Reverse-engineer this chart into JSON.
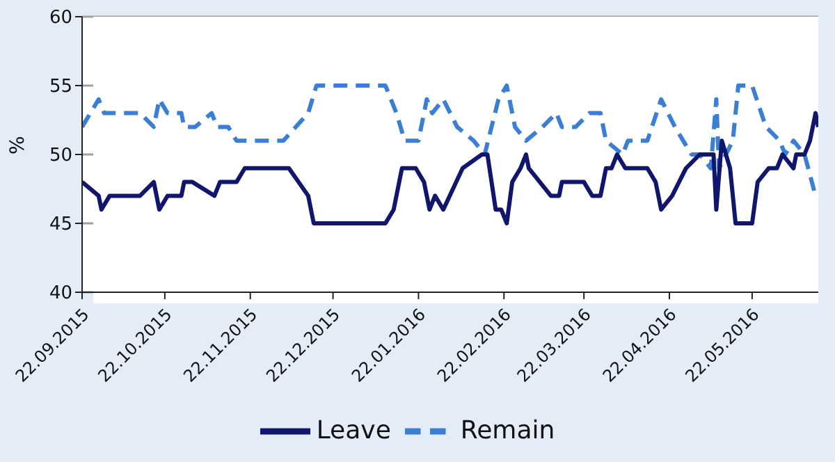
{
  "chart_data": {
    "type": "line",
    "ylabel": "%",
    "xlim": [
      "2015-09-22",
      "2016-06-15"
    ],
    "ylim": [
      40,
      60
    ],
    "yticks": [
      40,
      45,
      50,
      55,
      60
    ],
    "xticks": [
      {
        "value": "2015-09-22",
        "label": "22.09.2015"
      },
      {
        "value": "2015-10-22",
        "label": "22.10.2015"
      },
      {
        "value": "2015-11-22",
        "label": "22.11.2015"
      },
      {
        "value": "2015-12-22",
        "label": "22.12.2015"
      },
      {
        "value": "2016-01-22",
        "label": "22.01.2016"
      },
      {
        "value": "2016-02-22",
        "label": "22.02.2016"
      },
      {
        "value": "2016-03-22",
        "label": "22.03.2016"
      },
      {
        "value": "2016-04-22",
        "label": "22.04.2016"
      },
      {
        "value": "2016-05-22",
        "label": "22.05.2016"
      }
    ],
    "grid": "y",
    "legend": "bottom",
    "marker": "none",
    "series": [
      {
        "name": "Remain",
        "color": "#3a7fd5",
        "line_style": "dashed",
        "x": [
          "2015-09-22",
          "2015-09-28",
          "2015-09-30",
          "2015-10-13",
          "2015-10-18",
          "2015-10-20",
          "2015-10-23",
          "2015-10-28",
          "2015-10-29",
          "2015-11-02",
          "2015-11-08",
          "2015-11-10",
          "2015-11-14",
          "2015-11-17",
          "2015-12-04",
          "2015-12-13",
          "2015-12-16",
          "2016-01-10",
          "2016-01-14",
          "2016-01-17",
          "2016-01-22",
          "2016-01-25",
          "2016-01-27",
          "2016-01-31",
          "2016-02-05",
          "2016-02-11",
          "2016-02-15",
          "2016-02-20",
          "2016-02-23",
          "2016-02-24",
          "2016-02-26",
          "2016-03-01",
          "2016-03-07",
          "2016-03-12",
          "2016-03-14",
          "2016-03-19",
          "2016-03-24",
          "2016-03-28",
          "2016-03-30",
          "2016-04-05",
          "2016-04-07",
          "2016-04-14",
          "2016-04-19",
          "2016-04-24",
          "2016-04-30",
          "2016-05-03",
          "2016-05-07",
          "2016-05-09",
          "2016-05-10",
          "2016-05-15",
          "2016-05-17",
          "2016-05-22",
          "2016-05-27",
          "2016-06-01",
          "2016-06-03",
          "2016-06-06",
          "2016-06-10",
          "2016-06-14"
        ],
        "values": [
          52,
          54,
          53,
          53,
          52,
          54,
          53,
          53,
          52,
          52,
          53,
          52,
          52,
          51,
          51,
          53,
          55,
          55,
          53,
          51,
          51,
          54,
          53,
          54,
          52,
          51,
          50,
          54,
          55,
          54,
          52,
          51,
          52,
          53,
          52,
          52,
          53,
          53,
          51,
          50,
          51,
          51,
          54,
          52,
          50,
          50,
          49,
          54,
          49,
          51,
          55,
          55,
          52,
          51,
          50,
          51,
          50,
          47
        ]
      },
      {
        "name": "Leave",
        "color": "#10166e",
        "line_style": "solid",
        "x": [
          "2015-09-22",
          "2015-09-28",
          "2015-09-29",
          "2015-10-02",
          "2015-10-13",
          "2015-10-18",
          "2015-10-20",
          "2015-10-23",
          "2015-10-28",
          "2015-10-29",
          "2015-11-01",
          "2015-11-09",
          "2015-11-11",
          "2015-11-17",
          "2015-11-20",
          "2015-12-06",
          "2015-12-13",
          "2015-12-15",
          "2016-01-10",
          "2016-01-13",
          "2016-01-16",
          "2016-01-21",
          "2016-01-24",
          "2016-01-26",
          "2016-01-28",
          "2016-01-31",
          "2016-02-07",
          "2016-02-14",
          "2016-02-16",
          "2016-02-19",
          "2016-02-21",
          "2016-02-23",
          "2016-02-25",
          "2016-02-28",
          "2016-03-01",
          "2016-03-02",
          "2016-03-06",
          "2016-03-10",
          "2016-03-13",
          "2016-03-14",
          "2016-03-22",
          "2016-03-25",
          "2016-03-28",
          "2016-03-30",
          "2016-04-01",
          "2016-04-03",
          "2016-04-06",
          "2016-04-14",
          "2016-04-17",
          "2016-04-19",
          "2016-04-23",
          "2016-04-28",
          "2016-05-03",
          "2016-05-08",
          "2016-05-09",
          "2016-05-11",
          "2016-05-14",
          "2016-05-16",
          "2016-05-22",
          "2016-05-24",
          "2016-05-28",
          "2016-05-31",
          "2016-06-02",
          "2016-06-06",
          "2016-06-07",
          "2016-06-10",
          "2016-06-12",
          "2016-06-14",
          "2016-06-15"
        ],
        "values": [
          48,
          47,
          46,
          47,
          47,
          48,
          46,
          47,
          47,
          48,
          48,
          47,
          48,
          48,
          49,
          49,
          47,
          45,
          45,
          46,
          49,
          49,
          48,
          46,
          47,
          46,
          49,
          50,
          50,
          46,
          46,
          45,
          48,
          49,
          50,
          49,
          48,
          47,
          47,
          48,
          48,
          47,
          47,
          49,
          49,
          50,
          49,
          49,
          48,
          46,
          47,
          49,
          50,
          50,
          46,
          51,
          49,
          45,
          45,
          48,
          49,
          49,
          50,
          49,
          50,
          50,
          51,
          53,
          52
        ]
      }
    ]
  }
}
